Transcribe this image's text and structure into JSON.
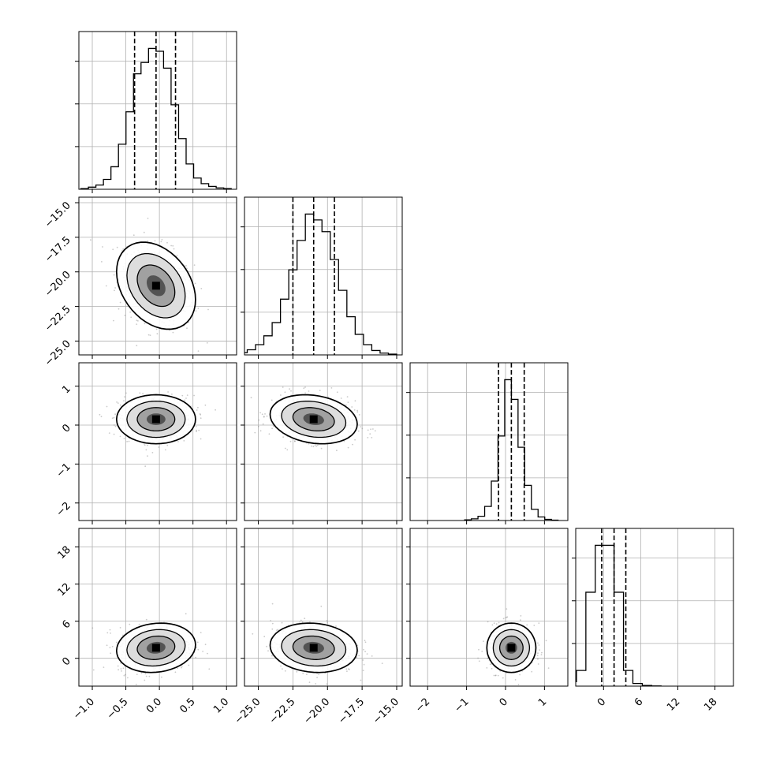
{
  "chart_data": {
    "type": "corner",
    "params": [
      {
        "range": [
          -1.2,
          1.15
        ],
        "ticks": [
          -1.0,
          -0.5,
          0.0,
          0.5,
          1.0
        ],
        "tick_labels": [
          "−1.0",
          "−0.5",
          "0.0",
          "0.5",
          "1.0"
        ],
        "quantiles": [
          -0.37,
          -0.05,
          0.24
        ],
        "mean": -0.05,
        "sd": 0.28
      },
      {
        "range": [
          -26.0,
          -14.6
        ],
        "ticks": [
          -25.0,
          -22.5,
          -20.0,
          -17.5,
          -15.0
        ],
        "tick_labels": [
          "−25.0",
          "−22.5",
          "−20.0",
          "−17.5",
          "−15.0"
        ],
        "quantiles": [
          -22.5,
          -21.0,
          -19.5
        ],
        "mean": -21.0,
        "sd": 1.5
      },
      {
        "range": [
          -2.45,
          1.6
        ],
        "ticks": [
          -2,
          -1,
          0,
          1
        ],
        "tick_labels": [
          "−2",
          "−1",
          "0",
          "1"
        ],
        "quantiles": [
          -0.18,
          0.15,
          0.48
        ],
        "mean": 0.15,
        "sd": 0.3
      },
      {
        "range": [
          -4.5,
          21.0
        ],
        "ticks": [
          0,
          6,
          12,
          18
        ],
        "tick_labels": [
          "0",
          "6",
          "12",
          "18"
        ],
        "quantiles": [
          -0.3,
          1.7,
          3.6
        ],
        "mean": 1.7,
        "sd": 1.9
      }
    ],
    "hist_1d": [
      [
        0.5,
        1.5,
        3,
        7,
        16,
        32,
        55,
        82,
        90,
        100,
        98,
        86,
        60,
        36,
        18,
        8,
        4,
        2,
        1,
        0.5
      ],
      [
        0.5,
        1.5,
        3.5,
        7,
        13,
        22,
        38,
        58,
        78,
        96,
        92,
        84,
        65,
        44,
        26,
        14,
        7,
        3,
        1.2,
        0.5
      ],
      [
        0.5,
        1.2,
        3,
        10,
        28,
        60,
        100,
        86,
        52,
        25,
        8,
        2.5,
        0.8,
        0.3
      ],
      [
        2,
        7,
        42,
        63,
        63,
        42,
        7,
        1.2,
        0.3,
        0.1
      ]
    ],
    "correlations": {
      "1,0": -0.32,
      "2,0": 0.0,
      "2,1": -0.2,
      "3,0": 0.12,
      "3,1": -0.1,
      "3,2": 0.0
    },
    "grid": true,
    "title": "",
    "xlabel": "",
    "ylabel": ""
  }
}
